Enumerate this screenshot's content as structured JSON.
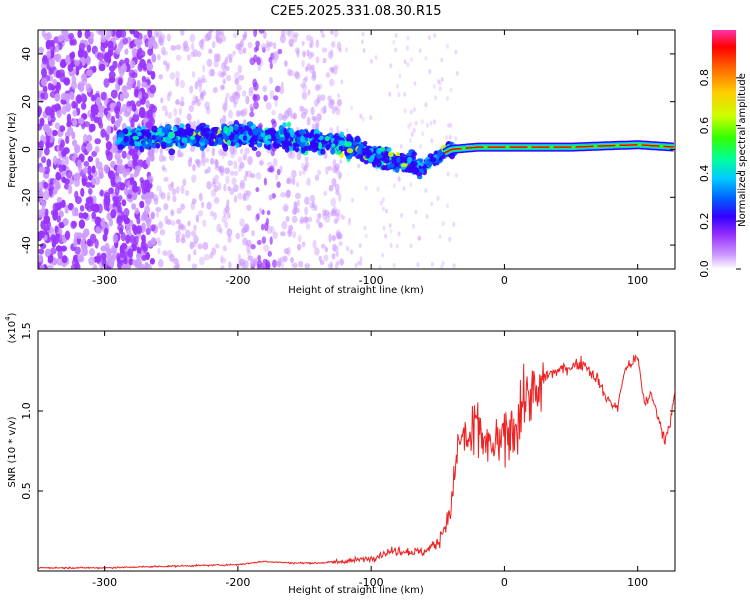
{
  "title": "C2E5.2025.331.08.30.R15",
  "chart_data": [
    {
      "type": "heatmap",
      "title": "C2E5.2025.331.08.30.R15",
      "xlabel": "Height of straight line (km)",
      "ylabel": "Frequency (Hz)",
      "xlim": [
        -350,
        128
      ],
      "ylim": [
        -50,
        50
      ],
      "xticks": [
        -300,
        -200,
        -100,
        0,
        100
      ],
      "yticks": [
        -40,
        -20,
        0,
        20,
        40
      ],
      "colorbar": {
        "label": "Normalized spectral amplitude",
        "range": [
          0,
          1
        ],
        "ticks": [
          0.0,
          0.2,
          0.4,
          0.6,
          0.8
        ],
        "colormap": [
          "#ffffff",
          "#cc99ff",
          "#9933ff",
          "#3300ff",
          "#0066ff",
          "#00ccff",
          "#00ff99",
          "#33ff00",
          "#ccff00",
          "#ffcc00",
          "#ff6600",
          "#ff0000",
          "#ff33aa"
        ]
      },
      "ridge": {
        "x": [
          -290,
          -250,
          -200,
          -150,
          -120,
          -100,
          -80,
          -60,
          -50,
          -40,
          -20,
          0,
          50,
          100,
          128
        ],
        "frequency": [
          5,
          5,
          6,
          4,
          2,
          -2,
          -5,
          -7,
          -3,
          0,
          1,
          1,
          1,
          2,
          1
        ]
      }
    },
    {
      "type": "line",
      "xlabel": "Height of straight line (km)",
      "ylabel": "SNR (10 * v/v)",
      "y_scale_note": "(x10^4)",
      "xlim": [
        -350,
        128
      ],
      "ylim": [
        0,
        1.5
      ],
      "xticks": [
        -300,
        -200,
        -100,
        0,
        100
      ],
      "yticks": [
        0.5,
        1.0,
        1.5
      ],
      "line_color": "#ee2222",
      "series": [
        {
          "name": "SNR",
          "x": [
            -350,
            -300,
            -250,
            -200,
            -180,
            -160,
            -140,
            -120,
            -100,
            -90,
            -80,
            -70,
            -60,
            -50,
            -40,
            -35,
            -30,
            -25,
            -20,
            -15,
            -10,
            -5,
            0,
            5,
            10,
            15,
            20,
            25,
            30,
            40,
            50,
            60,
            65,
            70,
            75,
            80,
            85,
            90,
            95,
            100,
            105,
            110,
            115,
            120,
            125,
            128
          ],
          "values": [
            0.02,
            0.02,
            0.03,
            0.04,
            0.06,
            0.05,
            0.05,
            0.06,
            0.08,
            0.11,
            0.13,
            0.12,
            0.12,
            0.18,
            0.38,
            0.78,
            0.85,
            0.8,
            0.92,
            0.8,
            0.75,
            0.8,
            0.82,
            0.88,
            0.95,
            1.08,
            1.12,
            1.05,
            1.22,
            1.25,
            1.28,
            1.3,
            1.24,
            1.2,
            1.1,
            1.05,
            1.02,
            1.25,
            1.3,
            1.33,
            1.05,
            1.1,
            0.98,
            0.82,
            0.95,
            1.12
          ]
        }
      ]
    }
  ],
  "labels": {
    "y_exponent": "(x10",
    "y_exponent_power": "4",
    "y_exponent_close": ")"
  }
}
